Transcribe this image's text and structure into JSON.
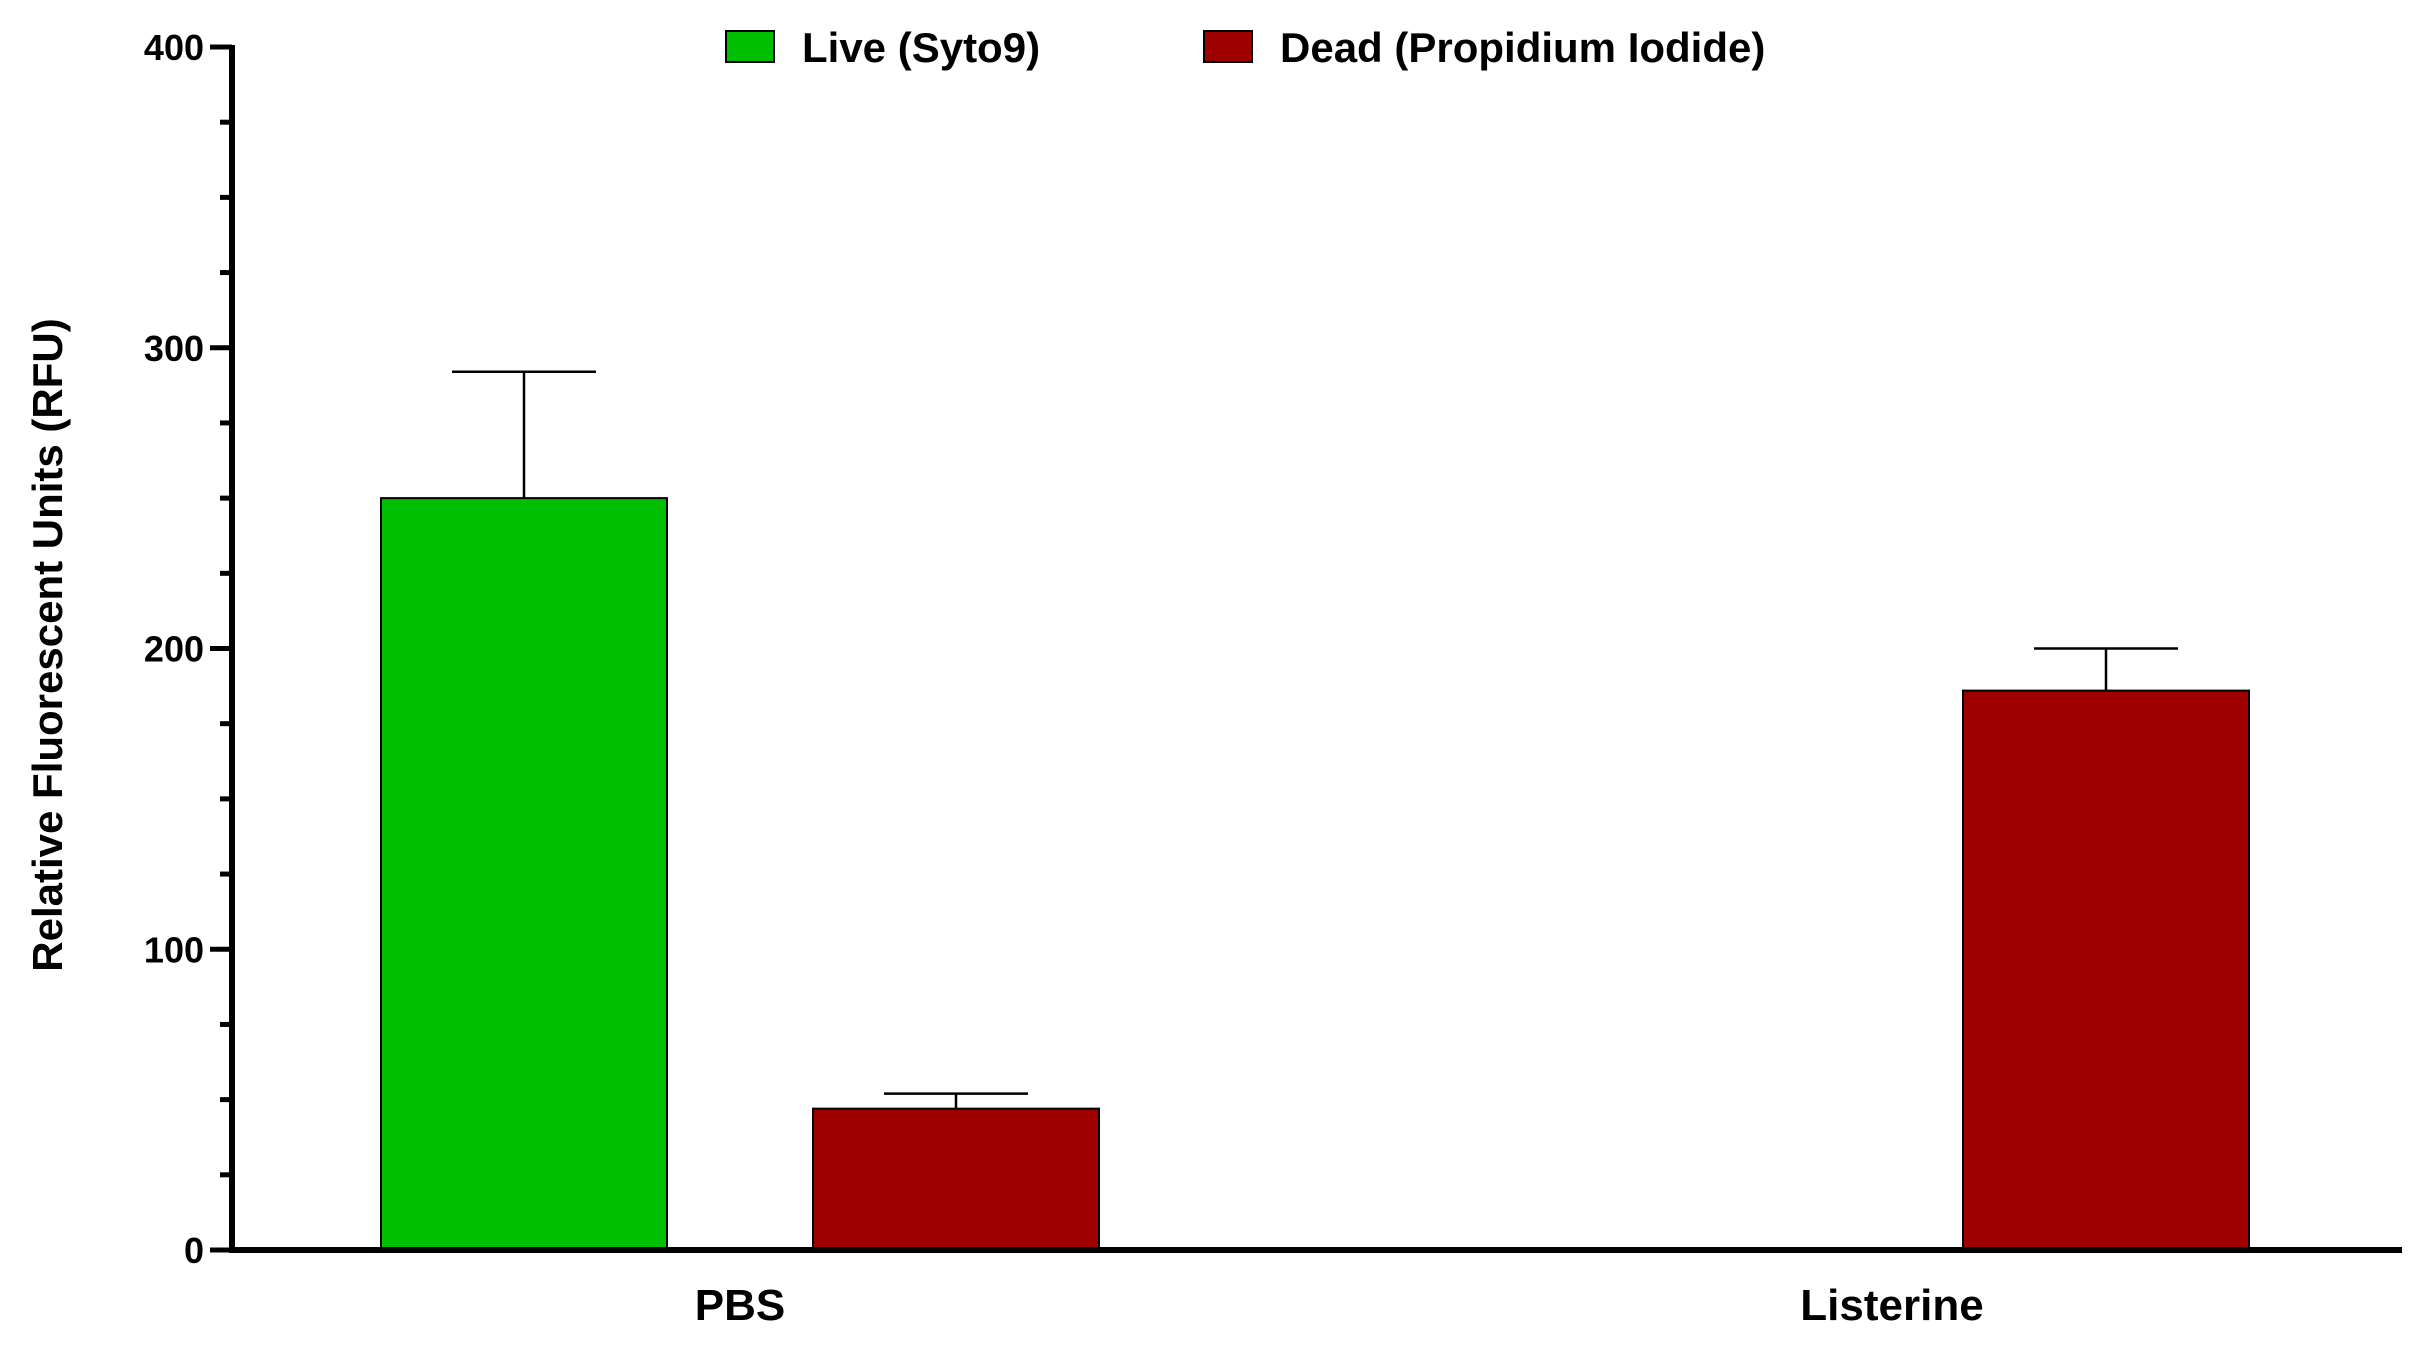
{
  "chart_data": {
    "type": "bar",
    "categories": [
      "PBS",
      "Listerine"
    ],
    "series": [
      {
        "name": "Live (Syto9)",
        "color": "#00bf00",
        "values": [
          250,
          null
        ],
        "errors": [
          42,
          null
        ]
      },
      {
        "name": "Dead (Propidium Iodide)",
        "color": "#9e0000",
        "values": [
          47,
          186
        ],
        "errors": [
          5,
          14
        ]
      }
    ],
    "ylabel": "Relative Fluorescent Units (RFU)",
    "xlabel": "",
    "ylim": [
      0,
      400
    ],
    "yticks": [
      0,
      100,
      200,
      300,
      400
    ],
    "ytick_labels": [
      "0",
      "100",
      "200",
      "300",
      "400"
    ],
    "legend_position": "top",
    "grid": false
  }
}
